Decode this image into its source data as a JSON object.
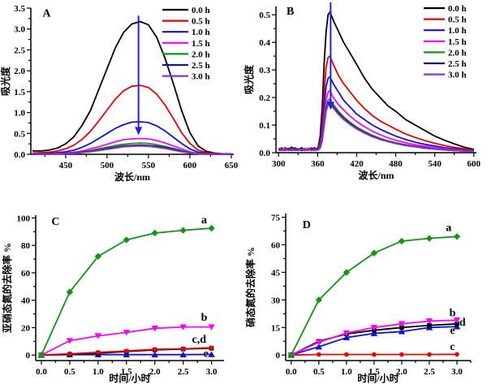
{
  "chart_data": [
    {
      "id": "A",
      "type": "line",
      "panel_label": "A",
      "xlabel": "波长/nm",
      "ylabel": "吸光度",
      "xlim": [
        408,
        653
      ],
      "ylim": [
        0,
        3.5
      ],
      "xticks": [
        450,
        500,
        550,
        600,
        650
      ],
      "xtick_labels": [
        "450",
        "500",
        "550",
        "600",
        "650"
      ],
      "yticks": [
        0,
        0.5,
        1,
        1.5,
        2,
        2.5,
        3,
        3.5
      ],
      "ytick_labels": [
        "0.0",
        "0.5",
        "1.0",
        "1.5",
        "2.0",
        "2.5",
        "3.0",
        "3.5"
      ],
      "x_minor": 25,
      "y_minor": 0.25,
      "legend": true,
      "x": [
        410,
        420,
        430,
        440,
        450,
        460,
        470,
        480,
        490,
        500,
        510,
        520,
        530,
        540,
        550,
        560,
        570,
        580,
        590,
        600,
        610,
        620,
        630,
        640,
        650
      ],
      "series": [
        {
          "name": "0.0 h",
          "color": "#000000",
          "y": [
            0.08,
            0.08,
            0.1,
            0.15,
            0.25,
            0.42,
            0.7,
            1.05,
            1.55,
            2.05,
            2.55,
            2.92,
            3.12,
            3.18,
            3.1,
            2.8,
            2.3,
            1.7,
            1.05,
            0.52,
            0.2,
            0.07,
            0.03,
            0.01,
            0.01
          ]
        },
        {
          "name": "0.5 h",
          "color": "#ee0000",
          "y": [
            0.03,
            0.04,
            0.05,
            0.08,
            0.13,
            0.22,
            0.36,
            0.55,
            0.8,
            1.06,
            1.32,
            1.52,
            1.63,
            1.65,
            1.6,
            1.44,
            1.18,
            0.86,
            0.52,
            0.26,
            0.1,
            0.04,
            0.02,
            0.01,
            0.01
          ]
        },
        {
          "name": "1.0 h",
          "color": "#1111dd",
          "y": [
            0.01,
            0.02,
            0.02,
            0.04,
            0.06,
            0.1,
            0.17,
            0.26,
            0.38,
            0.5,
            0.62,
            0.71,
            0.77,
            0.78,
            0.76,
            0.68,
            0.56,
            0.41,
            0.26,
            0.13,
            0.05,
            0.02,
            0.01,
            0.01,
            0.01
          ]
        },
        {
          "name": "1.5 h",
          "color": "#ff00ff",
          "y": [
            0.01,
            0.01,
            0.01,
            0.02,
            0.03,
            0.05,
            0.08,
            0.13,
            0.18,
            0.24,
            0.3,
            0.35,
            0.37,
            0.38,
            0.37,
            0.33,
            0.27,
            0.2,
            0.13,
            0.06,
            0.02,
            0.01,
            0.01,
            0.0,
            0.0
          ]
        },
        {
          "name": "2.0 h",
          "color": "#149314",
          "y": [
            0.0,
            0.01,
            0.01,
            0.01,
            0.02,
            0.03,
            0.06,
            0.09,
            0.13,
            0.17,
            0.21,
            0.24,
            0.26,
            0.27,
            0.26,
            0.23,
            0.19,
            0.14,
            0.09,
            0.04,
            0.02,
            0.01,
            0.0,
            0.0,
            0.0
          ]
        },
        {
          "name": "2.5 h",
          "color": "#191970",
          "y": [
            0.0,
            0.0,
            0.01,
            0.01,
            0.02,
            0.03,
            0.05,
            0.07,
            0.1,
            0.14,
            0.17,
            0.2,
            0.21,
            0.22,
            0.21,
            0.19,
            0.16,
            0.12,
            0.07,
            0.03,
            0.01,
            0.01,
            0.0,
            0.0,
            0.0
          ]
        },
        {
          "name": "3.0 h",
          "color": "#9030d0",
          "y": [
            0.0,
            0.0,
            0.0,
            0.01,
            0.01,
            0.02,
            0.04,
            0.06,
            0.09,
            0.12,
            0.15,
            0.18,
            0.19,
            0.2,
            0.19,
            0.17,
            0.14,
            0.1,
            0.06,
            0.03,
            0.01,
            0.0,
            0.0,
            0.0,
            0.0
          ]
        }
      ],
      "arrow": {
        "x": 538,
        "y_from": 3.32,
        "y_to": 0.46,
        "color": "#2222dd"
      },
      "annotations": [
        {
          "text": "A",
          "x": 427,
          "y": 3.3
        }
      ]
    },
    {
      "id": "B",
      "type": "line",
      "panel_label": "B",
      "xlabel": "波长/nm",
      "ylabel": "吸光度",
      "xlim": [
        296,
        604
      ],
      "ylim": [
        0,
        0.53
      ],
      "xticks": [
        300,
        360,
        420,
        480,
        540,
        600
      ],
      "xtick_labels": [
        "300",
        "360",
        "420",
        "480",
        "540",
        "600"
      ],
      "yticks": [
        0,
        0.1,
        0.2,
        0.3,
        0.4,
        0.5
      ],
      "ytick_labels": [
        "0.0",
        "0.1",
        "0.2",
        "0.3",
        "0.4",
        "0.5"
      ],
      "x_minor": 30,
      "y_minor": 0.05,
      "legend": true,
      "x": [
        300,
        305,
        310,
        315,
        320,
        325,
        330,
        335,
        340,
        345,
        350,
        355,
        358,
        361,
        364,
        367,
        370,
        373,
        376,
        379,
        384,
        392,
        400,
        410,
        420,
        432,
        444,
        456,
        468,
        480,
        495,
        510,
        525,
        540,
        555,
        570,
        585,
        600
      ],
      "series": [
        {
          "name": "0.0 h",
          "color": "#000000",
          "y": [
            0.015,
            0.008,
            0.018,
            0.01,
            0.02,
            0.012,
            0.008,
            0.018,
            0.01,
            0.016,
            0.009,
            0.018,
            0.012,
            0.02,
            0.06,
            0.16,
            0.32,
            0.44,
            0.5,
            0.51,
            0.48,
            0.44,
            0.4,
            0.36,
            0.32,
            0.27,
            0.23,
            0.2,
            0.17,
            0.15,
            0.12,
            0.1,
            0.08,
            0.06,
            0.045,
            0.032,
            0.02,
            0.012
          ]
        },
        {
          "name": "0.5 h",
          "color": "#ee0000",
          "y": [
            0.012,
            0.018,
            0.008,
            0.016,
            0.01,
            0.018,
            0.012,
            0.008,
            0.015,
            0.01,
            0.018,
            0.01,
            0.012,
            0.015,
            0.04,
            0.1,
            0.22,
            0.31,
            0.345,
            0.35,
            0.32,
            0.28,
            0.25,
            0.22,
            0.19,
            0.16,
            0.135,
            0.115,
            0.1,
            0.085,
            0.068,
            0.055,
            0.044,
            0.034,
            0.026,
            0.019,
            0.014,
            0.01
          ]
        },
        {
          "name": "1.0 h",
          "color": "#1111dd",
          "y": [
            0.01,
            0.015,
            0.008,
            0.014,
            0.009,
            0.015,
            0.01,
            0.016,
            0.008,
            0.014,
            0.01,
            0.015,
            0.01,
            0.012,
            0.03,
            0.08,
            0.17,
            0.24,
            0.27,
            0.275,
            0.25,
            0.22,
            0.19,
            0.165,
            0.14,
            0.12,
            0.1,
            0.085,
            0.072,
            0.06,
            0.048,
            0.038,
            0.03,
            0.024,
            0.018,
            0.014,
            0.01,
            0.008
          ]
        },
        {
          "name": "1.5 h",
          "color": "#ff00ff",
          "y": [
            0.008,
            0.012,
            0.015,
            0.008,
            0.012,
            0.009,
            0.014,
            0.008,
            0.012,
            0.016,
            0.008,
            0.012,
            0.01,
            0.01,
            0.025,
            0.06,
            0.13,
            0.19,
            0.22,
            0.225,
            0.2,
            0.175,
            0.155,
            0.132,
            0.113,
            0.094,
            0.078,
            0.065,
            0.054,
            0.045,
            0.036,
            0.029,
            0.023,
            0.018,
            0.014,
            0.011,
            0.008,
            0.007
          ]
        },
        {
          "name": "2.0 h",
          "color": "#149314",
          "y": [
            0.01,
            0.008,
            0.012,
            0.01,
            0.008,
            0.012,
            0.009,
            0.012,
            0.008,
            0.01,
            0.012,
            0.008,
            0.01,
            0.01,
            0.02,
            0.05,
            0.11,
            0.165,
            0.19,
            0.195,
            0.175,
            0.15,
            0.13,
            0.11,
            0.093,
            0.077,
            0.063,
            0.052,
            0.043,
            0.036,
            0.029,
            0.023,
            0.018,
            0.014,
            0.011,
            0.009,
            0.007,
            0.006
          ]
        },
        {
          "name": "2.5 h",
          "color": "#191970",
          "y": [
            0.008,
            0.01,
            0.008,
            0.012,
            0.009,
            0.01,
            0.012,
            0.008,
            0.01,
            0.009,
            0.011,
            0.009,
            0.01,
            0.01,
            0.018,
            0.045,
            0.1,
            0.155,
            0.18,
            0.185,
            0.167,
            0.143,
            0.124,
            0.105,
            0.089,
            0.073,
            0.06,
            0.049,
            0.041,
            0.034,
            0.027,
            0.022,
            0.017,
            0.013,
            0.01,
            0.008,
            0.006,
            0.006
          ]
        },
        {
          "name": "3.0 h",
          "color": "#9030d0",
          "y": [
            0.009,
            0.011,
            0.009,
            0.01,
            0.011,
            0.008,
            0.01,
            0.011,
            0.009,
            0.012,
            0.008,
            0.01,
            0.009,
            0.01,
            0.017,
            0.042,
            0.095,
            0.15,
            0.175,
            0.18,
            0.162,
            0.139,
            0.12,
            0.102,
            0.086,
            0.071,
            0.058,
            0.048,
            0.04,
            0.033,
            0.026,
            0.021,
            0.016,
            0.013,
            0.01,
            0.008,
            0.006,
            0.005
          ]
        }
      ],
      "arrow": {
        "x": 380,
        "y_from": 0.545,
        "y_to": 0.155,
        "color": "#2222dd"
      },
      "annotations": [
        {
          "text": "B",
          "x": 318,
          "y": 0.5
        }
      ]
    },
    {
      "id": "C",
      "type": "line",
      "panel_label": "C",
      "xlabel": "时间/小时",
      "ylabel": "亚硝态氮的去除率 %",
      "xlim": [
        -0.1,
        3.22
      ],
      "ylim": [
        -4,
        102
      ],
      "xticks": [
        0,
        0.5,
        1,
        1.5,
        2,
        2.5,
        3
      ],
      "xtick_labels": [
        "0.0",
        "0.5",
        "1.0",
        "1.5",
        "2.0",
        "2.5",
        "3.0"
      ],
      "yticks": [
        0,
        20,
        40,
        60,
        80,
        100
      ],
      "ytick_labels": [
        "0",
        "20",
        "40",
        "60",
        "80",
        "100"
      ],
      "x_minor": 0.25,
      "y_minor": 10,
      "legend": false,
      "x": [
        0,
        0.5,
        1.0,
        1.5,
        2.0,
        2.5,
        3.0
      ],
      "series": [
        {
          "name": "e",
          "color": "#1111dd",
          "marker": "triangle-up",
          "y": [
            0,
            0.3,
            0.3,
            0.3,
            0.3,
            0.3,
            0.5
          ]
        },
        {
          "name": "d",
          "color": "#000000",
          "marker": "square",
          "y": [
            0,
            0.6,
            1.4,
            2.6,
            3.8,
            4.4,
            5.0
          ]
        },
        {
          "name": "c",
          "color": "#ee0000",
          "marker": "circle",
          "y": [
            0,
            1.0,
            2.0,
            3.0,
            4.2,
            4.6,
            5.4
          ]
        },
        {
          "name": "b",
          "color": "#ff00ff",
          "marker": "triangle-down",
          "y": [
            0,
            10.5,
            14,
            16.5,
            19.5,
            20.5,
            20.5
          ]
        },
        {
          "name": "a",
          "color": "#149314",
          "marker": "diamond",
          "y": [
            0,
            46,
            72,
            84,
            89,
            91,
            92.5
          ]
        }
      ],
      "annotations": [
        {
          "text": "C",
          "x": 0.25,
          "y": 95
        },
        {
          "text": "a",
          "x": 2.87,
          "y": 96
        },
        {
          "text": "b",
          "x": 2.87,
          "y": 25
        },
        {
          "text": "c,d",
          "x": 2.78,
          "y": 9
        },
        {
          "text": "e",
          "x": 2.9,
          "y": -1.2
        }
      ]
    },
    {
      "id": "D",
      "type": "line",
      "panel_label": "D",
      "xlabel": "时间/小时",
      "ylabel": "硝态氮的去除率 %",
      "xlim": [
        -0.1,
        3.25
      ],
      "ylim": [
        -3,
        77
      ],
      "xticks": [
        0,
        0.5,
        1,
        1.5,
        2,
        2.5,
        3
      ],
      "xtick_labels": [
        "0.0",
        "0.5",
        "1.0",
        "1.5",
        "2.0",
        "2.5",
        "3.0"
      ],
      "yticks": [
        0,
        15,
        30,
        45,
        60,
        75
      ],
      "ytick_labels": [
        "0",
        "15",
        "30",
        "45",
        "60",
        "75"
      ],
      "x_minor": 0.25,
      "y_minor": 7.5,
      "legend": false,
      "x": [
        0,
        0.5,
        1.0,
        1.5,
        2.0,
        2.5,
        3.0
      ],
      "series": [
        {
          "name": "e",
          "color": "#1111dd",
          "marker": "triangle-up",
          "y": [
            0,
            4.5,
            9.5,
            11.8,
            12.8,
            15,
            15.5
          ]
        },
        {
          "name": "d",
          "color": "#000000",
          "marker": "square",
          "y": [
            0,
            7.5,
            11.5,
            13.5,
            15,
            16.2,
            17
          ]
        },
        {
          "name": "c",
          "color": "#ee0000",
          "marker": "circle",
          "y": [
            0,
            0.3,
            0.3,
            0.3,
            0.3,
            0.3,
            0.4
          ]
        },
        {
          "name": "b",
          "color": "#ff00ff",
          "marker": "triangle-down",
          "y": [
            0,
            7,
            12,
            15,
            17,
            18.5,
            19
          ]
        },
        {
          "name": "a",
          "color": "#149314",
          "marker": "diamond",
          "y": [
            0,
            30,
            45,
            55.5,
            62,
            63.5,
            64.5
          ]
        }
      ],
      "annotations": [
        {
          "text": "D",
          "x": 0.28,
          "y": 69
        },
        {
          "text": "a",
          "x": 2.85,
          "y": 67.5
        },
        {
          "text": "b",
          "x": 2.92,
          "y": 21
        },
        {
          "text": "d",
          "x": 3.1,
          "y": 16
        },
        {
          "text": "e",
          "x": 2.92,
          "y": 11.5
        },
        {
          "text": "c",
          "x": 2.92,
          "y": 2.8
        }
      ]
    }
  ]
}
